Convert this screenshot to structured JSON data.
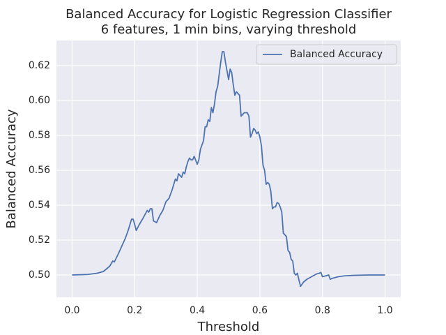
{
  "chart_data": {
    "type": "line",
    "title": "Balanced Accuracy for Logistic Regression Classifier",
    "subtitle": "6 features, 1 min bins, varying threshold",
    "x_label": "Threshold",
    "y_label": "Balanced Accuracy",
    "x": [
      0,
      0.05,
      0.08,
      0.1,
      0.11,
      0.12,
      0.13,
      0.135,
      0.15,
      0.17,
      0.18,
      0.19,
      0.195,
      0.2,
      0.205,
      0.215,
      0.225,
      0.24,
      0.245,
      0.25,
      0.255,
      0.26,
      0.265,
      0.27,
      0.28,
      0.29,
      0.3,
      0.31,
      0.32,
      0.33,
      0.335,
      0.34,
      0.345,
      0.35,
      0.355,
      0.36,
      0.365,
      0.37,
      0.375,
      0.38,
      0.385,
      0.39,
      0.4,
      0.405,
      0.41,
      0.42,
      0.425,
      0.43,
      0.435,
      0.44,
      0.445,
      0.45,
      0.455,
      0.46,
      0.465,
      0.47,
      0.475,
      0.48,
      0.485,
      0.49,
      0.495,
      0.5,
      0.505,
      0.51,
      0.515,
      0.52,
      0.525,
      0.53,
      0.535,
      0.54,
      0.545,
      0.55,
      0.56,
      0.565,
      0.57,
      0.575,
      0.58,
      0.585,
      0.59,
      0.595,
      0.6,
      0.605,
      0.61,
      0.615,
      0.62,
      0.625,
      0.63,
      0.635,
      0.64,
      0.645,
      0.65,
      0.655,
      0.66,
      0.665,
      0.67,
      0.675,
      0.68,
      0.685,
      0.69,
      0.695,
      0.7,
      0.705,
      0.71,
      0.715,
      0.72,
      0.725,
      0.73,
      0.74,
      0.75,
      0.76,
      0.77,
      0.78,
      0.79,
      0.795,
      0.8,
      0.81,
      0.82,
      0.825,
      0.83,
      0.85,
      0.87,
      0.9,
      0.95,
      1.0
    ],
    "series": [
      {
        "name": "Balanced Accuracy",
        "color": "#4c72b0",
        "values": [
          0.5,
          0.5003,
          0.501,
          0.502,
          0.5035,
          0.505,
          0.508,
          0.5075,
          0.513,
          0.521,
          0.526,
          0.532,
          0.532,
          0.529,
          0.5255,
          0.529,
          0.532,
          0.537,
          0.536,
          0.538,
          0.538,
          0.531,
          0.5305,
          0.53,
          0.534,
          0.537,
          0.542,
          0.544,
          0.549,
          0.555,
          0.554,
          0.558,
          0.557,
          0.556,
          0.559,
          0.558,
          0.562,
          0.565,
          0.567,
          0.566,
          0.566,
          0.568,
          0.5635,
          0.566,
          0.572,
          0.577,
          0.585,
          0.585,
          0.589,
          0.588,
          0.596,
          0.593,
          0.598,
          0.605,
          0.608,
          0.615,
          0.622,
          0.628,
          0.628,
          0.622,
          0.617,
          0.612,
          0.618,
          0.616,
          0.609,
          0.603,
          0.605,
          0.604,
          0.603,
          0.591,
          0.592,
          0.593,
          0.593,
          0.591,
          0.579,
          0.581,
          0.584,
          0.583,
          0.581,
          0.582,
          0.579,
          0.574,
          0.563,
          0.56,
          0.552,
          0.553,
          0.552,
          0.548,
          0.538,
          0.539,
          0.539,
          0.5415,
          0.541,
          0.539,
          0.536,
          0.524,
          0.523,
          0.522,
          0.514,
          0.513,
          0.509,
          0.508,
          0.501,
          0.5,
          0.501,
          0.497,
          0.4935,
          0.496,
          0.4975,
          0.4985,
          0.4995,
          0.5005,
          0.501,
          0.5015,
          0.499,
          0.4995,
          0.5,
          0.4975,
          0.498,
          0.499,
          0.4995,
          0.4998,
          0.5,
          0.5
        ]
      }
    ],
    "xlim": [
      -0.05,
      1.05
    ],
    "ylim": [
      0.4872,
      0.6344
    ],
    "xticks": [
      {
        "value": 0,
        "label": "0.0"
      },
      0.2,
      0.4,
      0.6,
      0.8,
      {
        "value": 1,
        "label": "1.0"
      }
    ],
    "yticks": [
      {
        "value": 0.5,
        "label": "0.50"
      },
      0.52,
      0.54,
      0.56,
      0.58,
      {
        "value": 0.6,
        "label": "0.60"
      },
      0.62
    ],
    "grid": true,
    "legend": "upper right"
  }
}
